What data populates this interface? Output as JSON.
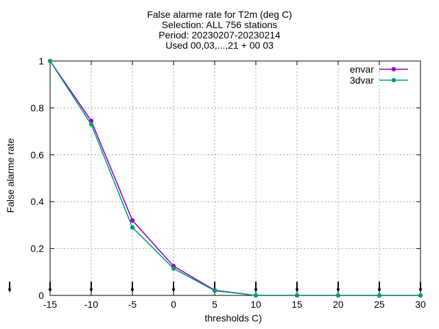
{
  "chart_data": {
    "type": "line",
    "title_lines": [
      "False alarme rate  for T2m (deg C)",
      "Selection: ALL    756 stations",
      "Period: 20230207-20230214",
      "Used 00,03,...,21 + 00 03"
    ],
    "xlabel": "thresholds C)",
    "ylabel": "False alarme rate",
    "x": [
      -15,
      -10,
      -5,
      0,
      5,
      10,
      15,
      20,
      25,
      30
    ],
    "xlim": [
      -15,
      30
    ],
    "ylim": [
      0,
      1
    ],
    "xticks": [
      "-15",
      "-10",
      "-5",
      "0",
      "5",
      "10",
      "15",
      "20",
      "25",
      "30"
    ],
    "yticks": [
      "0",
      "0.2",
      "0.4",
      "0.6",
      "0.8",
      "1"
    ],
    "grid": true,
    "legend_position": "top-right",
    "series": [
      {
        "name": "envar",
        "color": "#9400d3",
        "values": [
          1.0,
          0.745,
          0.32,
          0.125,
          0.022,
          0.0,
          0.0,
          0.0,
          0.0,
          0.0
        ]
      },
      {
        "name": "3dvar",
        "color": "#009e73",
        "values": [
          1.0,
          0.73,
          0.29,
          0.115,
          0.02,
          0.0,
          0.0,
          0.0,
          0.0,
          0.0
        ]
      }
    ]
  }
}
